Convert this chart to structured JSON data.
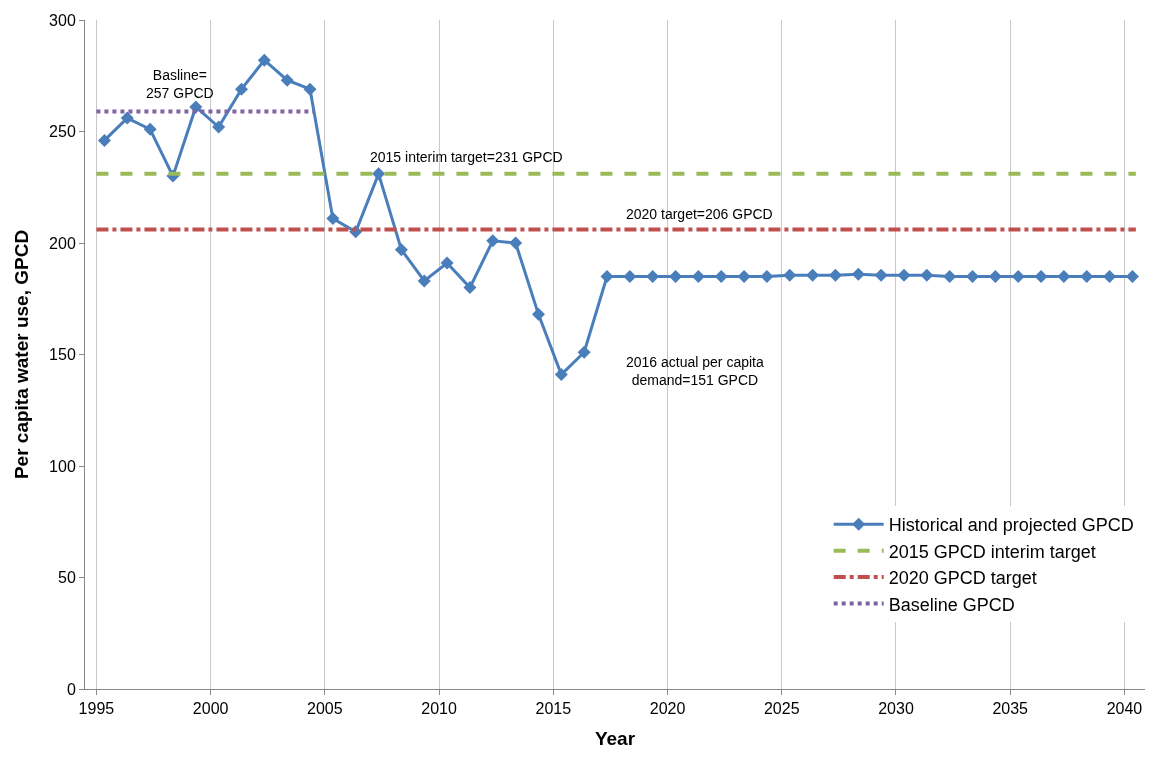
{
  "chart_data": {
    "type": "line",
    "xlabel": "Year",
    "ylabel": "Per capita water use, GPCD",
    "xlim": [
      1994.5,
      2040.9
    ],
    "ylim": [
      0,
      300
    ],
    "xticks": [
      1995,
      2000,
      2005,
      2010,
      2015,
      2020,
      2025,
      2030,
      2035,
      2040
    ],
    "yticks": [
      0,
      50,
      100,
      150,
      200,
      250,
      300
    ],
    "grid": "x",
    "legend": "bottom right",
    "series": [
      {
        "name": "Historical and projected GPCD",
        "color": "#4a7ebb",
        "marker": "diamond",
        "line_style": "solid",
        "x": [
          1995.35,
          1996.35,
          1997.35,
          1998.35,
          1999.35,
          2000.35,
          2001.35,
          2002.35,
          2003.35,
          2004.35,
          2005.35,
          2006.35,
          2007.35,
          2008.35,
          2009.35,
          2010.35,
          2011.35,
          2012.35,
          2013.35,
          2014.35,
          2015.35,
          2016.35,
          2017.35,
          2018.35,
          2019.35,
          2020.35,
          2021.35,
          2022.35,
          2023.35,
          2024.35,
          2025.35,
          2026.35,
          2027.35,
          2028.35,
          2029.35,
          2030.35,
          2031.35,
          2032.35,
          2033.35,
          2034.35,
          2035.35,
          2036.35,
          2037.35,
          2038.35,
          2039.35,
          2040.35
        ],
        "values": [
          246,
          256,
          251,
          230,
          261,
          252,
          269,
          282,
          273,
          269,
          211,
          205,
          231,
          197,
          183,
          191,
          180,
          201,
          200,
          168,
          141,
          151,
          185,
          185,
          185,
          185,
          185,
          185,
          185,
          185,
          185.5,
          185.5,
          185.5,
          186,
          185.5,
          185.5,
          185.5,
          185,
          185,
          185,
          185,
          185,
          185,
          185,
          185,
          185
        ]
      },
      {
        "name": "2015 GPCD interim target",
        "color": "#9bbb59",
        "marker": "none",
        "line_style": "dashed",
        "x": [
          1995,
          2040.5
        ],
        "values": [
          231,
          231
        ]
      },
      {
        "name": "2020 GPCD target",
        "color": "#c0504d",
        "marker": "none",
        "line_style": "dashdot",
        "x": [
          1995,
          2040.5
        ],
        "values": [
          206,
          206
        ]
      },
      {
        "name": "Baseline GPCD",
        "color": "#8064a2",
        "marker": "none",
        "line_style": "dotted",
        "x": [
          1995,
          2004.5
        ],
        "values": [
          259,
          259
        ]
      }
    ],
    "annotations": [
      "Basline=\n257 GPCD",
      "2015 interim target=231 GPCD",
      "2020 target=206 GPCD",
      "2016 actual per capita\ndemand=151 GPCD"
    ]
  }
}
